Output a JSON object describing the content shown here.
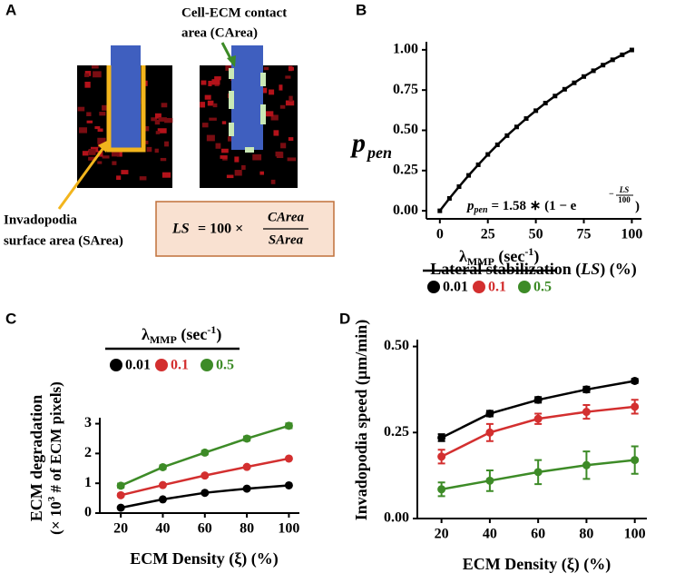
{
  "panel_a": {
    "panel_label": "A",
    "contact_label": [
      "Cell-ECM contact",
      "area (CArea)"
    ],
    "surface_label": [
      "Invadopodia",
      "surface area (SArea)"
    ],
    "formula": {
      "lhs": "LS",
      "op": "= 100 ×",
      "num": "CArea",
      "den": "SArea"
    }
  },
  "chart_data": [
    {
      "type": "line",
      "panel_label": "B",
      "ylabel": "p",
      "ylabel_sub": "pen",
      "xlabel": [
        "Lateral stabilization (",
        "LS",
        ") (%)"
      ],
      "annotation": {
        "p": "p",
        "sub": "pen",
        "body": "= 1.58 ∗ (1 − e",
        "exp_sign": "−",
        "exp_num": "LS",
        "exp_den": "100",
        "close": ")"
      },
      "x": [
        0,
        5,
        10,
        15,
        20,
        25,
        30,
        35,
        40,
        45,
        50,
        55,
        60,
        65,
        70,
        75,
        80,
        85,
        90,
        95,
        100
      ],
      "series": [
        {
          "color": "#000000",
          "values": [
            0,
            0.077,
            0.15,
            0.22,
            0.286,
            0.35,
            0.41,
            0.467,
            0.521,
            0.573,
            0.622,
            0.669,
            0.713,
            0.755,
            0.795,
            0.834,
            0.87,
            0.905,
            0.938,
            0.969,
            0.999
          ]
        }
      ],
      "xlim": [
        -7,
        105
      ],
      "ylim": [
        -0.05,
        1.05
      ],
      "xticks": [
        0,
        25,
        50,
        75,
        100
      ],
      "yticks": [
        {
          "value": 0,
          "label": "0.00"
        },
        {
          "value": 0.25,
          "label": "0.25"
        },
        {
          "value": 0.5,
          "label": "0.50"
        },
        {
          "value": 0.75,
          "label": "0.75"
        },
        {
          "value": 1,
          "label": "1.00"
        }
      ]
    },
    {
      "type": "errorline",
      "panel_label": "C",
      "ylabel": "ECM degradation",
      "ylabel2": [
        "(× 10",
        "3",
        " # of ECM pixels)"
      ],
      "xlabel": "ECM Density (ξ) (%)",
      "legend_title": [
        "λ",
        "MMP",
        " (sec",
        "-1",
        ")"
      ],
      "x": [
        20,
        40,
        60,
        80,
        100
      ],
      "series": [
        {
          "name": "0.01",
          "color": "#000000",
          "values": [
            0.18,
            0.46,
            0.68,
            0.82,
            0.93
          ],
          "errors": [
            0.02,
            0.02,
            0.02,
            0.02,
            0.02
          ]
        },
        {
          "name": "0.1",
          "color": "#d32f2f",
          "values": [
            0.6,
            0.94,
            1.26,
            1.55,
            1.83
          ],
          "errors": [
            0.04,
            0.03,
            0.03,
            0.03,
            0.03
          ]
        },
        {
          "name": "0.5",
          "color": "#3d8b27",
          "values": [
            0.92,
            1.54,
            2.03,
            2.5,
            2.93
          ],
          "errors": [
            0.07,
            0.06,
            0.06,
            0.07,
            0.08
          ]
        }
      ],
      "xlim": [
        10,
        105
      ],
      "ylim": [
        0,
        3.2
      ],
      "xticks": [
        20,
        40,
        60,
        80,
        100
      ],
      "yticks": [
        0,
        1,
        2,
        3
      ]
    },
    {
      "type": "errorline",
      "panel_label": "D",
      "ylabel": "Invadopodia speed (µm/min)",
      "xlabel": "ECM Density (ξ) (%)",
      "legend_title": [
        "λ",
        "MMP",
        " (sec",
        "-1",
        ")"
      ],
      "x": [
        20,
        40,
        60,
        80,
        100
      ],
      "series": [
        {
          "name": "0.01",
          "color": "#000000",
          "values": [
            0.235,
            0.305,
            0.345,
            0.375,
            0.4
          ],
          "errors": [
            0.01,
            0.008,
            0.008,
            0.008,
            0.006
          ]
        },
        {
          "name": "0.1",
          "color": "#d32f2f",
          "values": [
            0.18,
            0.25,
            0.29,
            0.31,
            0.325
          ],
          "errors": [
            0.02,
            0.025,
            0.015,
            0.02,
            0.02
          ]
        },
        {
          "name": "0.5",
          "color": "#3d8b27",
          "values": [
            0.085,
            0.11,
            0.135,
            0.155,
            0.17
          ],
          "errors": [
            0.02,
            0.03,
            0.035,
            0.04,
            0.04
          ]
        }
      ],
      "xlim": [
        10,
        105
      ],
      "ylim": [
        0,
        0.52
      ],
      "xticks": [
        20,
        40,
        60,
        80,
        100
      ],
      "yticks": [
        {
          "value": 0,
          "label": "0.00"
        },
        {
          "value": 0.25,
          "label": "0.25"
        },
        {
          "value": 0.5,
          "label": "0.50"
        }
      ]
    }
  ]
}
